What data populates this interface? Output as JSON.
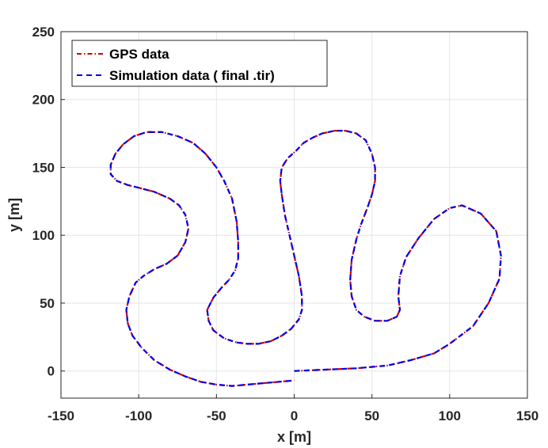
{
  "chart_data": {
    "type": "line",
    "xlabel": "x [m]",
    "ylabel": "y [m]",
    "xlim": [
      -150,
      150
    ],
    "ylim": [
      -20,
      250
    ],
    "xticks": [
      -150,
      -100,
      -50,
      0,
      50,
      100,
      150
    ],
    "yticks": [
      0,
      50,
      100,
      150,
      200,
      250
    ],
    "grid": true,
    "legend_position": "top-left",
    "series": [
      {
        "name": "GPS data",
        "color": "#cc0000",
        "style": "dash-dot",
        "x": [
          0,
          20,
          40,
          60,
          75,
          90,
          100,
          115,
          125,
          132,
          133,
          130,
          120,
          108,
          100,
          90,
          80,
          72,
          68,
          67,
          68,
          66,
          60,
          52,
          45,
          40,
          37,
          36,
          37,
          40,
          43,
          47,
          50,
          52,
          52,
          50,
          46,
          40,
          33,
          26,
          18,
          12,
          6,
          1,
          -4,
          -8,
          -9,
          -8,
          -6,
          -3,
          0,
          3,
          5,
          5,
          3,
          -2,
          -8,
          -15,
          -23,
          -30,
          -37,
          -45,
          -52,
          -55,
          -56,
          -52,
          -47,
          -42,
          -38,
          -36,
          -36,
          -37,
          -40,
          -45,
          -50,
          -57,
          -65,
          -75,
          -85,
          -95,
          -103,
          -110,
          -115,
          -118,
          -118,
          -114,
          -107,
          -100,
          -90,
          -80,
          -74,
          -70,
          -68,
          -70,
          -75,
          -82,
          -90,
          -97,
          -102,
          -106,
          -108,
          -107,
          -104,
          -98,
          -90,
          -80,
          -70,
          -60,
          -50,
          -40,
          -30,
          -20,
          -10,
          0
        ],
        "y": [
          0,
          1,
          2,
          4,
          8,
          13,
          20,
          33,
          50,
          68,
          85,
          103,
          116,
          122,
          120,
          112,
          98,
          84,
          70,
          55,
          45,
          40,
          37,
          37,
          40,
          45,
          55,
          67,
          82,
          97,
          108,
          120,
          130,
          140,
          150,
          160,
          170,
          175,
          177,
          177,
          175,
          172,
          168,
          162,
          157,
          150,
          140,
          130,
          115,
          100,
          85,
          70,
          55,
          45,
          38,
          31,
          26,
          22,
          20,
          20,
          21,
          24,
          30,
          37,
          45,
          54,
          61,
          67,
          74,
          83,
          95,
          110,
          127,
          140,
          150,
          160,
          168,
          173,
          176,
          176,
          173,
          167,
          160,
          152,
          145,
          140,
          137,
          135,
          132,
          127,
          122,
          115,
          105,
          95,
          85,
          79,
          75,
          70,
          65,
          55,
          45,
          35,
          26,
          17,
          8,
          1,
          -4,
          -8,
          -10,
          -11,
          -10,
          -9,
          -8,
          -7
        ]
      },
      {
        "name": "Simulation data ( final .tir)",
        "color": "#0000ee",
        "style": "dashed",
        "x": [
          0,
          20,
          40,
          60,
          75,
          90,
          100,
          115,
          125,
          132,
          133,
          130,
          120,
          108,
          100,
          90,
          80,
          72,
          68,
          67,
          68,
          66,
          60,
          52,
          45,
          40,
          37,
          36,
          37,
          40,
          43,
          47,
          50,
          52,
          52,
          50,
          46,
          40,
          33,
          26,
          18,
          12,
          6,
          1,
          -4,
          -8,
          -9,
          -8,
          -6,
          -3,
          0,
          3,
          5,
          5,
          3,
          -2,
          -8,
          -15,
          -23,
          -30,
          -37,
          -45,
          -52,
          -55,
          -56,
          -52,
          -47,
          -42,
          -38,
          -36,
          -36,
          -37,
          -40,
          -45,
          -50,
          -57,
          -65,
          -75,
          -85,
          -95,
          -103,
          -110,
          -115,
          -118,
          -118,
          -114,
          -107,
          -100,
          -90,
          -80,
          -74,
          -70,
          -68,
          -70,
          -75,
          -82,
          -90,
          -97,
          -102,
          -106,
          -108,
          -107,
          -104,
          -98,
          -90,
          -80,
          -70,
          -60,
          -50,
          -40,
          -30,
          -20,
          -10,
          0
        ],
        "y": [
          0,
          1,
          2,
          4,
          8,
          13,
          20,
          33,
          50,
          68,
          85,
          103,
          116,
          122,
          120,
          112,
          98,
          84,
          70,
          55,
          45,
          40,
          37,
          37,
          40,
          45,
          55,
          67,
          82,
          97,
          108,
          120,
          130,
          140,
          150,
          160,
          170,
          175,
          177,
          177,
          175,
          172,
          168,
          162,
          157,
          150,
          140,
          130,
          115,
          100,
          85,
          70,
          55,
          45,
          38,
          31,
          26,
          22,
          20,
          20,
          21,
          24,
          30,
          37,
          45,
          54,
          61,
          67,
          74,
          83,
          95,
          110,
          127,
          140,
          150,
          160,
          168,
          173,
          176,
          176,
          173,
          167,
          160,
          152,
          145,
          140,
          137,
          135,
          132,
          127,
          122,
          115,
          105,
          95,
          85,
          79,
          75,
          70,
          65,
          55,
          45,
          35,
          26,
          17,
          8,
          1,
          -4,
          -8,
          -10,
          -11,
          -10,
          -9,
          -8,
          -7
        ]
      }
    ]
  }
}
